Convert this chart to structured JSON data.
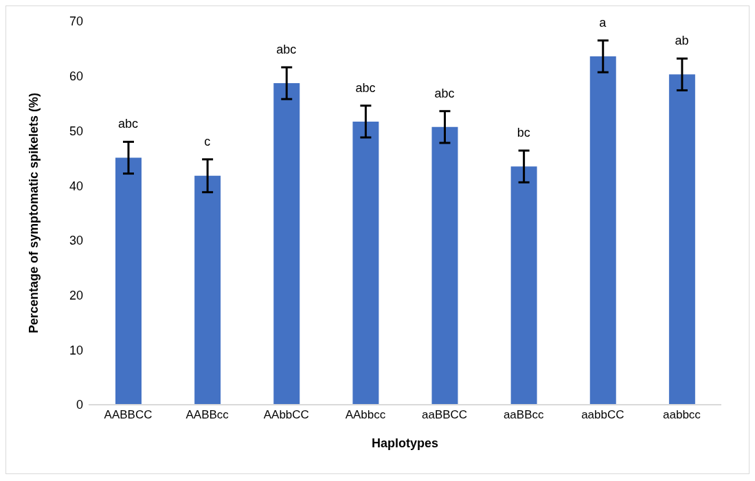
{
  "chart_data": {
    "type": "bar",
    "xlabel": "Haplotypes",
    "ylabel": "Percentage of symptomatic spikelets (%)",
    "categories": [
      "AABBCC",
      "AABBcc",
      "AAbbCC",
      "AAbbcc",
      "aaBBCC",
      "aaBBcc",
      "aabbCC",
      "aabbcc"
    ],
    "values": [
      45.1,
      41.8,
      58.7,
      51.7,
      50.7,
      43.5,
      63.6,
      60.3
    ],
    "errors": [
      2.9,
      3.0,
      2.9,
      2.9,
      2.9,
      2.9,
      2.9,
      2.9
    ],
    "color": "#4472c4",
    "ylim": [
      0,
      70
    ],
    "yticks": [
      0,
      10,
      20,
      30,
      40,
      50,
      60,
      70
    ],
    "grid": false,
    "legend": false,
    "annotations": [
      {
        "text": "abc",
        "x": "AABBCC",
        "y": 48.0
      },
      {
        "text": "c",
        "x": "AABBcc",
        "y": 44.8
      },
      {
        "text": "abc",
        "x": "AAbbCC",
        "y": 61.6
      },
      {
        "text": "abc",
        "x": "AAbbcc",
        "y": 54.6
      },
      {
        "text": "abc",
        "x": "aaBBCC",
        "y": 53.6
      },
      {
        "text": "bc",
        "x": "aaBBcc",
        "y": 46.4
      },
      {
        "text": "a",
        "x": "aabbCC",
        "y": 66.5
      },
      {
        "text": "ab",
        "x": "aabbcc",
        "y": 63.2
      }
    ]
  }
}
